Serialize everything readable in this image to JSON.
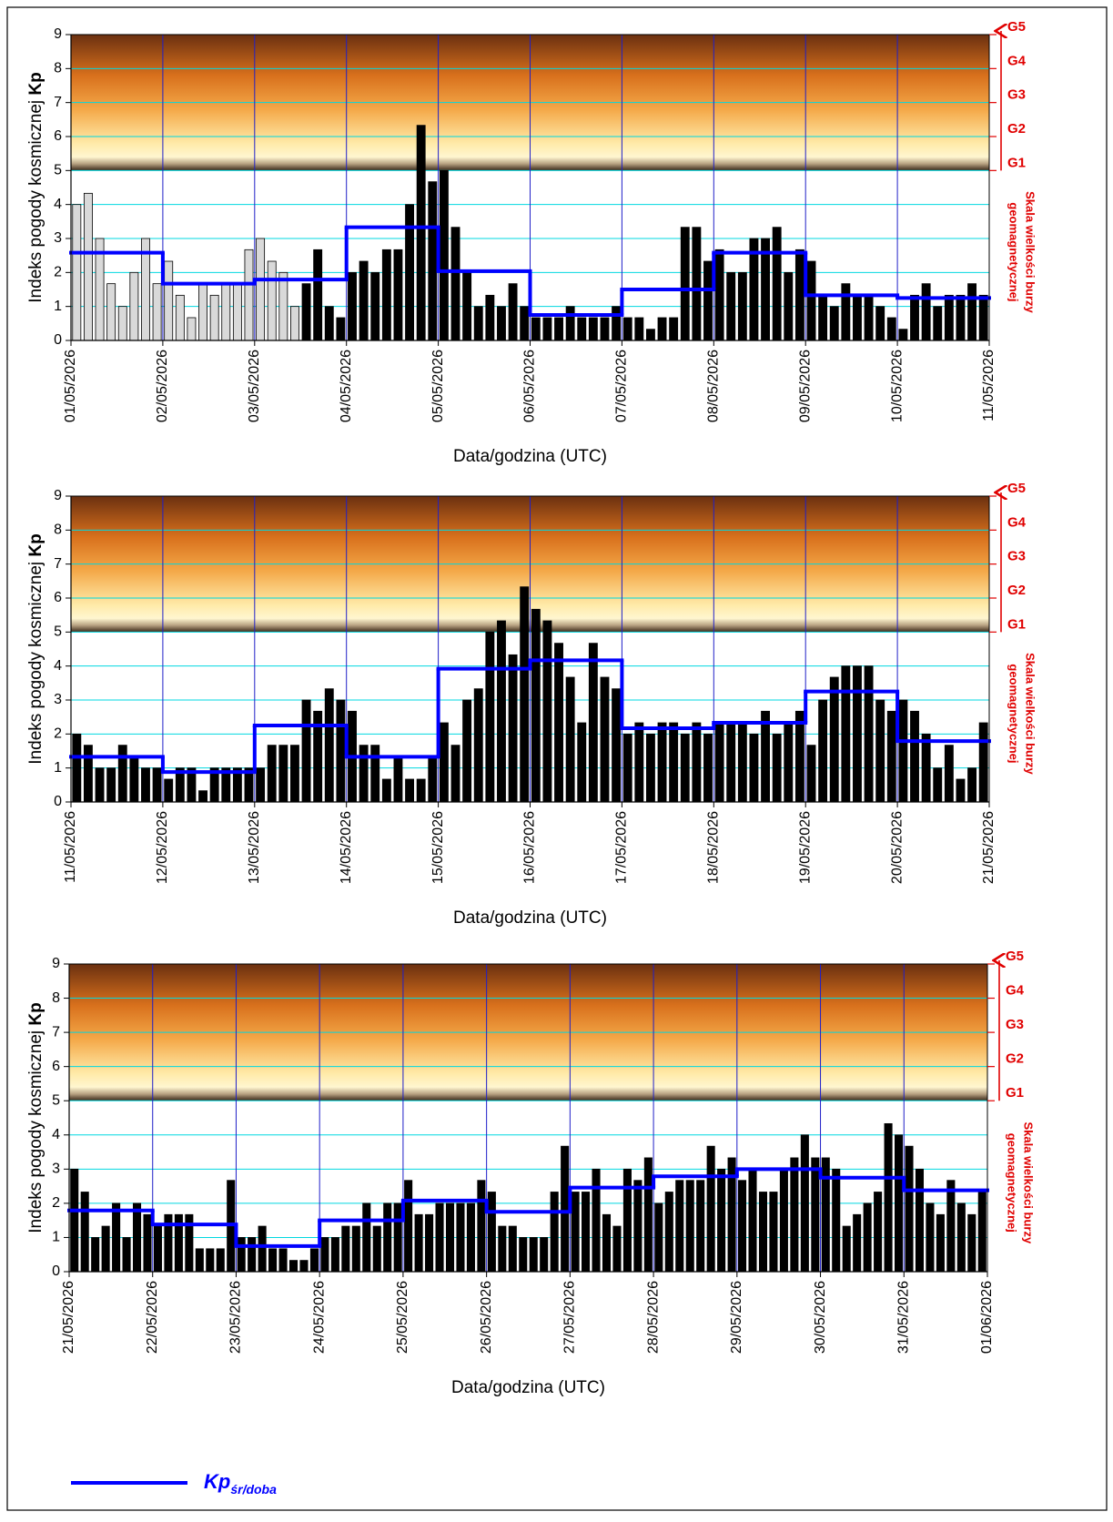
{
  "chart_data": [
    {
      "type": "bar",
      "ylabel": "Indeks pogody kosmicznej",
      "ylabel_bold": "Kp",
      "xlabel": "Data/godzina (UTC)",
      "ylim": [
        0,
        9
      ],
      "yticks": [
        0,
        1,
        2,
        3,
        4,
        5,
        6,
        7,
        8,
        9
      ],
      "y2lim": [
        0,
        9
      ],
      "y2ticks": [
        {
          "value": 5,
          "label": "G1"
        },
        {
          "value": 6,
          "label": "G2"
        },
        {
          "value": 7,
          "label": "G3"
        },
        {
          "value": 8,
          "label": "G4"
        },
        {
          "value": 9,
          "label": "G5"
        }
      ],
      "y2label": [
        "Skala wielkości burzy",
        "geomagnetycznej"
      ],
      "band": [
        5,
        9
      ],
      "grid": true,
      "xlim": [
        0,
        10
      ],
      "xticks": [
        {
          "value": 0,
          "label": "01/05/2026"
        },
        {
          "value": 1,
          "label": "02/05/2026"
        },
        {
          "value": 2,
          "label": "03/05/2026"
        },
        {
          "value": 3,
          "label": "04/05/2026"
        },
        {
          "value": 4,
          "label": "05/05/2026"
        },
        {
          "value": 5,
          "label": "06/05/2026"
        },
        {
          "value": 6,
          "label": "07/05/2026"
        },
        {
          "value": 7,
          "label": "08/05/2026"
        },
        {
          "value": 8,
          "label": "09/05/2026"
        },
        {
          "value": 9,
          "label": "10/05/2026"
        },
        {
          "value": 10,
          "label": "11/05/2026"
        }
      ],
      "series": [
        {
          "kind": "bar",
          "color": "#d9d9d9",
          "values": [
            4,
            4.33,
            3,
            1.67,
            1,
            2,
            3,
            1.67,
            2.33,
            1.33,
            0.67,
            1.67,
            1.33,
            1.67,
            1.67,
            2.67,
            3,
            2.33,
            2,
            1,
            null,
            null,
            null,
            null,
            null,
            null,
            null,
            null,
            null,
            null,
            null,
            null,
            null,
            null,
            null,
            null,
            null,
            null,
            null,
            null,
            null,
            null,
            null,
            null,
            null,
            null,
            null,
            null,
            null,
            null,
            null,
            null,
            null,
            null,
            null,
            null,
            null,
            null,
            null,
            null,
            null,
            null,
            null,
            null,
            null,
            null,
            null,
            null,
            null,
            null,
            null,
            null,
            null,
            null,
            null,
            null,
            null,
            null,
            null,
            null
          ]
        },
        {
          "kind": "bar",
          "color": "#000000",
          "values": [
            null,
            null,
            null,
            null,
            null,
            null,
            null,
            null,
            null,
            null,
            null,
            null,
            null,
            null,
            null,
            null,
            null,
            null,
            null,
            null,
            1.67,
            2.67,
            1,
            0.67,
            2,
            2.33,
            2,
            2.67,
            2.67,
            4,
            6.33,
            4.67,
            5,
            3.33,
            2,
            1,
            1.33,
            1,
            1.67,
            1,
            0.67,
            0.67,
            0.67,
            1,
            0.67,
            0.67,
            0.67,
            1,
            0.67,
            0.67,
            0.33,
            0.67,
            0.67,
            3.33,
            3.33,
            2.33,
            2.67,
            2,
            2,
            3,
            3,
            3.33,
            2,
            2.67,
            2.33,
            1.33,
            1,
            1.67,
            1.33,
            1.33,
            1,
            0.67,
            0.33,
            1.33,
            1.67,
            1,
            1.33,
            1.33,
            1.67,
            1.33
          ]
        },
        {
          "kind": "step",
          "color": "#0000ff",
          "values": [
            2.58,
            1.67,
            1.79,
            3.33,
            2.04,
            0.75,
            1.5,
            2.58,
            1.33,
            1.25
          ]
        }
      ]
    },
    {
      "type": "bar",
      "ylabel": "Indeks pogody kosmicznej",
      "ylabel_bold": "Kp",
      "xlabel": "Data/godzina (UTC)",
      "ylim": [
        0,
        9
      ],
      "yticks": [
        0,
        1,
        2,
        3,
        4,
        5,
        6,
        7,
        8,
        9
      ],
      "y2lim": [
        0,
        9
      ],
      "y2ticks": [
        {
          "value": 5,
          "label": "G1"
        },
        {
          "value": 6,
          "label": "G2"
        },
        {
          "value": 7,
          "label": "G3"
        },
        {
          "value": 8,
          "label": "G4"
        },
        {
          "value": 9,
          "label": "G5"
        }
      ],
      "y2label": [
        "Skala wielkości burzy",
        "geomagnetycznej"
      ],
      "band": [
        5,
        9
      ],
      "grid": true,
      "xlim": [
        0,
        10
      ],
      "xticks": [
        {
          "value": 0,
          "label": "11/05/2026"
        },
        {
          "value": 1,
          "label": "12/05/2026"
        },
        {
          "value": 2,
          "label": "13/05/2026"
        },
        {
          "value": 3,
          "label": "14/05/2026"
        },
        {
          "value": 4,
          "label": "15/05/2026"
        },
        {
          "value": 5,
          "label": "16/05/2026"
        },
        {
          "value": 6,
          "label": "17/05/2026"
        },
        {
          "value": 7,
          "label": "18/05/2026"
        },
        {
          "value": 8,
          "label": "19/05/2026"
        },
        {
          "value": 9,
          "label": "20/05/2026"
        },
        {
          "value": 10,
          "label": "21/05/2026"
        }
      ],
      "series": [
        {
          "kind": "bar",
          "color": "#000000",
          "values": [
            2,
            1.67,
            1,
            1,
            1.67,
            1.33,
            1,
            1,
            0.67,
            1,
            1,
            0.33,
            1,
            1,
            1,
            1,
            1,
            1.67,
            1.67,
            1.67,
            3,
            2.67,
            3.33,
            3,
            2.67,
            1.67,
            1.67,
            0.67,
            1.33,
            0.67,
            0.67,
            1.33,
            2.33,
            1.67,
            3,
            3.33,
            5,
            5.33,
            4.33,
            6.33,
            5.67,
            5.33,
            4.67,
            3.67,
            2.33,
            4.67,
            3.67,
            3.33,
            2,
            2.33,
            2,
            2.33,
            2.33,
            2,
            2.33,
            2,
            2.33,
            2.33,
            2.33,
            2,
            2.67,
            2,
            2.33,
            2.67,
            1.67,
            3,
            3.67,
            4,
            4,
            4,
            3,
            2.67,
            3,
            2.67,
            2,
            1,
            1.67,
            0.67,
            1,
            2.33
          ]
        },
        {
          "kind": "step",
          "color": "#0000ff",
          "values": [
            1.33,
            0.88,
            2.25,
            1.33,
            3.92,
            4.17,
            2.17,
            2.33,
            3.25,
            1.79
          ]
        }
      ]
    },
    {
      "type": "bar",
      "ylabel": "Indeks pogody kosmicznej",
      "ylabel_bold": "Kp",
      "xlabel": "Data/godzina (UTC)",
      "ylim": [
        0,
        9
      ],
      "yticks": [
        0,
        1,
        2,
        3,
        4,
        5,
        6,
        7,
        8,
        9
      ],
      "y2lim": [
        0,
        9
      ],
      "y2ticks": [
        {
          "value": 5,
          "label": "G1"
        },
        {
          "value": 6,
          "label": "G2"
        },
        {
          "value": 7,
          "label": "G3"
        },
        {
          "value": 8,
          "label": "G4"
        },
        {
          "value": 9,
          "label": "G5"
        }
      ],
      "y2label": [
        "Skala wielkości burzy",
        "geomagnetycznej"
      ],
      "band": [
        5,
        9
      ],
      "grid": true,
      "xlim": [
        0,
        11
      ],
      "xticks": [
        {
          "value": 0,
          "label": "21/05/2026"
        },
        {
          "value": 1,
          "label": "22/05/2026"
        },
        {
          "value": 2,
          "label": "23/05/2026"
        },
        {
          "value": 3,
          "label": "24/05/2026"
        },
        {
          "value": 4,
          "label": "25/05/2026"
        },
        {
          "value": 5,
          "label": "26/05/2026"
        },
        {
          "value": 6,
          "label": "27/05/2026"
        },
        {
          "value": 7,
          "label": "28/05/2026"
        },
        {
          "value": 8,
          "label": "29/05/2026"
        },
        {
          "value": 9,
          "label": "30/05/2026"
        },
        {
          "value": 10,
          "label": "31/05/2026"
        },
        {
          "value": 11,
          "label": "01/06/2026"
        }
      ],
      "legend": "bottom-left",
      "series": [
        {
          "kind": "bar",
          "color": "#000000",
          "values": [
            3,
            2.33,
            1,
            1.33,
            2,
            1,
            2,
            1.67,
            1.33,
            1.67,
            1.67,
            1.67,
            0.67,
            0.67,
            0.67,
            2.67,
            1,
            1,
            1.33,
            0.67,
            0.67,
            0.33,
            0.33,
            0.67,
            1,
            1,
            1.33,
            1.33,
            2,
            1.33,
            2,
            2,
            2.67,
            1.67,
            1.67,
            2,
            2,
            2,
            2,
            2.67,
            2.33,
            1.33,
            1.33,
            1,
            1,
            1,
            2.33,
            3.67,
            2.33,
            2.33,
            3,
            1.67,
            1.33,
            3,
            2.67,
            3.33,
            2,
            2.33,
            2.67,
            2.67,
            2.67,
            3.67,
            3,
            3.33,
            2.67,
            3,
            2.33,
            2.33,
            3,
            3.33,
            4,
            3.33,
            3.33,
            3,
            1.33,
            1.67,
            2,
            2.33,
            4.33,
            4,
            3.67,
            3,
            2,
            1.67,
            2.67,
            2,
            1.67,
            2.33
          ]
        },
        {
          "kind": "step",
          "name": "Kp",
          "name_sub": "śr/doba",
          "color": "#0000ff",
          "values": [
            1.79,
            1.38,
            0.75,
            1.5,
            2.08,
            1.75,
            2.46,
            2.79,
            3,
            2.75,
            2.38
          ]
        }
      ]
    }
  ]
}
